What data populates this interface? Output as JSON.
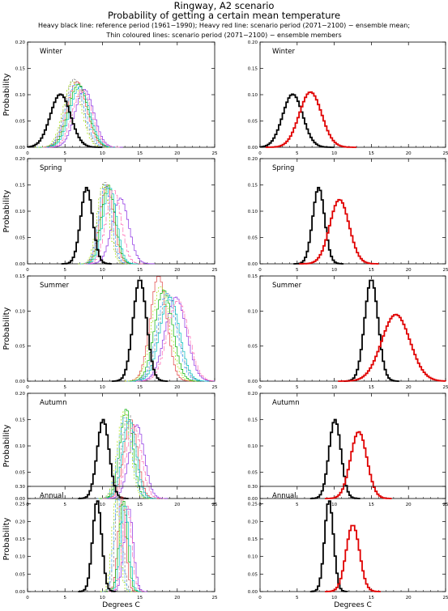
{
  "header": {
    "title": "Ringway, A2 scenario",
    "subtitle": "Probability of getting a certain mean temperature",
    "legend_line1": "Heavy black line: reference period (1961−1990); Heavy red line: scenario period (2071−2100) − ensemble mean;",
    "legend_line2": "Thin coloured lines: scenario period (2071−2100) − ensemble members"
  },
  "axis_text": {
    "xlabel": "Degrees C",
    "ylabel": "Probability"
  },
  "colors": {
    "reference": "#000000",
    "ensemble_mean": "#e00000",
    "members": [
      "#8a2be2",
      "#e04040",
      "#808080",
      "#00b000",
      "#40a0ff",
      "#00c0c0",
      "#a0e000",
      "#ff69b4"
    ]
  },
  "chart_data": [
    {
      "type": "histogram-step",
      "panel": "Winter",
      "column": "ensemble-members",
      "xlim": [
        0,
        25
      ],
      "ylim": [
        0,
        0.2
      ],
      "xticks": [
        "0",
        "5",
        "10",
        "15",
        "20",
        "25"
      ],
      "yticks": [
        "0.00",
        "0.05",
        "0.10",
        "0.15",
        "0.20"
      ],
      "reference": {
        "mean": 4.4,
        "sd": 1.35,
        "peak": 0.101
      },
      "members": [
        {
          "mean": 7.6,
          "sd": 1.25,
          "peak": 0.11
        },
        {
          "mean": 6.6,
          "sd": 1.3,
          "peak": 0.125
        },
        {
          "mean": 6.2,
          "sd": 1.2,
          "peak": 0.13
        },
        {
          "mean": 6.8,
          "sd": 1.3,
          "peak": 0.12
        },
        {
          "mean": 6.4,
          "sd": 1.25,
          "peak": 0.12
        },
        {
          "mean": 7.0,
          "sd": 1.3,
          "peak": 0.115
        },
        {
          "mean": 6.0,
          "sd": 1.2,
          "peak": 0.125
        },
        {
          "mean": 7.3,
          "sd": 1.3,
          "peak": 0.11
        }
      ]
    },
    {
      "type": "histogram-step",
      "panel": "Winter",
      "column": "ensemble-mean",
      "xlim": [
        0,
        25
      ],
      "ylim": [
        0,
        0.2
      ],
      "xticks": [
        "0",
        "5",
        "10",
        "15",
        "20",
        "25"
      ],
      "yticks": [
        "0.00",
        "0.05",
        "0.10",
        "0.15",
        "0.20"
      ],
      "reference": {
        "mean": 4.4,
        "sd": 1.35,
        "peak": 0.101
      },
      "ensemble_mean": {
        "mean": 6.8,
        "sd": 1.5,
        "peak": 0.105
      }
    },
    {
      "type": "histogram-step",
      "panel": "Spring",
      "column": "ensemble-members",
      "xlim": [
        0,
        25
      ],
      "ylim": [
        0,
        0.2
      ],
      "xticks": [
        "0",
        "5",
        "10",
        "15",
        "20",
        "25"
      ],
      "yticks": [
        "0.00",
        "0.05",
        "0.10",
        "0.15",
        "0.20"
      ],
      "reference": {
        "mean": 7.9,
        "sd": 0.8,
        "peak": 0.145
      },
      "members": [
        {
          "mean": 12.4,
          "sd": 1.1,
          "peak": 0.125
        },
        {
          "mean": 10.6,
          "sd": 0.9,
          "peak": 0.15
        },
        {
          "mean": 10.3,
          "sd": 0.8,
          "peak": 0.155
        },
        {
          "mean": 10.8,
          "sd": 0.9,
          "peak": 0.15
        },
        {
          "mean": 10.4,
          "sd": 0.85,
          "peak": 0.15
        },
        {
          "mean": 11.0,
          "sd": 0.9,
          "peak": 0.145
        },
        {
          "mean": 10.1,
          "sd": 0.8,
          "peak": 0.15
        },
        {
          "mean": 11.5,
          "sd": 1.0,
          "peak": 0.14
        }
      ]
    },
    {
      "type": "histogram-step",
      "panel": "Spring",
      "column": "ensemble-mean",
      "xlim": [
        0,
        25
      ],
      "ylim": [
        0,
        0.2
      ],
      "xticks": [
        "0",
        "5",
        "10",
        "15",
        "20",
        "25"
      ],
      "yticks": [
        "0.00",
        "0.05",
        "0.10",
        "0.15",
        "0.20"
      ],
      "reference": {
        "mean": 7.9,
        "sd": 0.8,
        "peak": 0.145
      },
      "ensemble_mean": {
        "mean": 10.7,
        "sd": 1.3,
        "peak": 0.122
      }
    },
    {
      "type": "histogram-step",
      "panel": "Summer",
      "column": "ensemble-members",
      "xlim": [
        0,
        25
      ],
      "ylim": [
        0,
        0.15
      ],
      "xticks": [
        "0",
        "5",
        "10",
        "15",
        "20",
        "25"
      ],
      "yticks": [
        "0.00",
        "0.05",
        "0.10",
        "0.15"
      ],
      "reference": {
        "mean": 15.0,
        "sd": 0.9,
        "peak": 0.145
      },
      "members": [
        {
          "mean": 19.8,
          "sd": 1.4,
          "peak": 0.12
        },
        {
          "mean": 17.5,
          "sd": 1.1,
          "peak": 0.15
        },
        {
          "mean": 18.8,
          "sd": 1.3,
          "peak": 0.125
        },
        {
          "mean": 18.2,
          "sd": 1.2,
          "peak": 0.13
        },
        {
          "mean": 18.6,
          "sd": 1.3,
          "peak": 0.125
        },
        {
          "mean": 19.0,
          "sd": 1.3,
          "peak": 0.12
        },
        {
          "mean": 17.8,
          "sd": 1.2,
          "peak": 0.135
        },
        {
          "mean": 20.1,
          "sd": 1.4,
          "peak": 0.115
        }
      ]
    },
    {
      "type": "histogram-step",
      "panel": "Summer",
      "column": "ensemble-mean",
      "xlim": [
        0,
        25
      ],
      "ylim": [
        0,
        0.15
      ],
      "xticks": [
        "0",
        "5",
        "10",
        "15",
        "20",
        "25"
      ],
      "yticks": [
        "0.00",
        "0.05",
        "0.10",
        "0.15"
      ],
      "reference": {
        "mean": 15.0,
        "sd": 0.9,
        "peak": 0.145
      },
      "ensemble_mean": {
        "mean": 18.3,
        "sd": 1.9,
        "peak": 0.095
      }
    },
    {
      "type": "histogram-step",
      "panel": "Autumn",
      "column": "ensemble-members",
      "xlim": [
        0,
        25
      ],
      "ylim": [
        0,
        0.2
      ],
      "xticks": [
        "0",
        "5",
        "10",
        "15",
        "20",
        "25"
      ],
      "yticks": [
        "0.00",
        "0.05",
        "0.10",
        "0.15",
        "0.20"
      ],
      "reference": {
        "mean": 10.1,
        "sd": 0.8,
        "peak": 0.15
      },
      "members": [
        {
          "mean": 14.6,
          "sd": 1.0,
          "peak": 0.14
        },
        {
          "mean": 13.8,
          "sd": 0.9,
          "peak": 0.15
        },
        {
          "mean": 13.5,
          "sd": 0.9,
          "peak": 0.16
        },
        {
          "mean": 13.2,
          "sd": 0.85,
          "peak": 0.17
        },
        {
          "mean": 13.0,
          "sd": 0.9,
          "peak": 0.155
        },
        {
          "mean": 13.6,
          "sd": 0.9,
          "peak": 0.15
        },
        {
          "mean": 12.9,
          "sd": 0.85,
          "peak": 0.165
        },
        {
          "mean": 14.2,
          "sd": 1.0,
          "peak": 0.14
        }
      ]
    },
    {
      "type": "histogram-step",
      "panel": "Autumn",
      "column": "ensemble-mean",
      "xlim": [
        0,
        25
      ],
      "ylim": [
        0,
        0.2
      ],
      "xticks": [
        "0",
        "5",
        "10",
        "15",
        "20",
        "25"
      ],
      "yticks": [
        "0.00",
        "0.05",
        "0.10",
        "0.15",
        "0.20"
      ],
      "reference": {
        "mean": 10.1,
        "sd": 0.8,
        "peak": 0.15
      },
      "ensemble_mean": {
        "mean": 13.3,
        "sd": 1.1,
        "peak": 0.127
      }
    },
    {
      "type": "histogram-step",
      "panel": "Annual",
      "column": "ensemble-members",
      "xlim": [
        0,
        25
      ],
      "ylim": [
        0,
        0.3
      ],
      "xticks": [
        "0",
        "5",
        "10",
        "15",
        "20",
        "25"
      ],
      "yticks": [
        "0.00",
        "0.05",
        "0.10",
        "0.15",
        "0.20",
        "0.25",
        "0.30"
      ],
      "reference": {
        "mean": 9.3,
        "sd": 0.6,
        "peak": 0.26
      },
      "members": [
        {
          "mean": 13.5,
          "sd": 0.6,
          "peak": 0.24
        },
        {
          "mean": 12.6,
          "sd": 0.5,
          "peak": 0.27
        },
        {
          "mean": 12.2,
          "sd": 0.5,
          "peak": 0.28
        },
        {
          "mean": 12.8,
          "sd": 0.55,
          "peak": 0.26
        },
        {
          "mean": 12.0,
          "sd": 0.5,
          "peak": 0.27
        },
        {
          "mean": 13.0,
          "sd": 0.55,
          "peak": 0.25
        },
        {
          "mean": 11.8,
          "sd": 0.5,
          "peak": 0.265
        },
        {
          "mean": 13.3,
          "sd": 0.6,
          "peak": 0.245
        }
      ]
    },
    {
      "type": "histogram-step",
      "panel": "Annual",
      "column": "ensemble-mean",
      "xlim": [
        0,
        25
      ],
      "ylim": [
        0,
        0.3
      ],
      "xticks": [
        "0",
        "5",
        "10",
        "15",
        "20",
        "25"
      ],
      "yticks": [
        "0.00",
        "0.05",
        "0.10",
        "0.15",
        "0.20",
        "0.25",
        "0.30"
      ],
      "reference": {
        "mean": 9.3,
        "sd": 0.6,
        "peak": 0.26
      },
      "ensemble_mean": {
        "mean": 12.5,
        "sd": 0.9,
        "peak": 0.19
      }
    }
  ]
}
